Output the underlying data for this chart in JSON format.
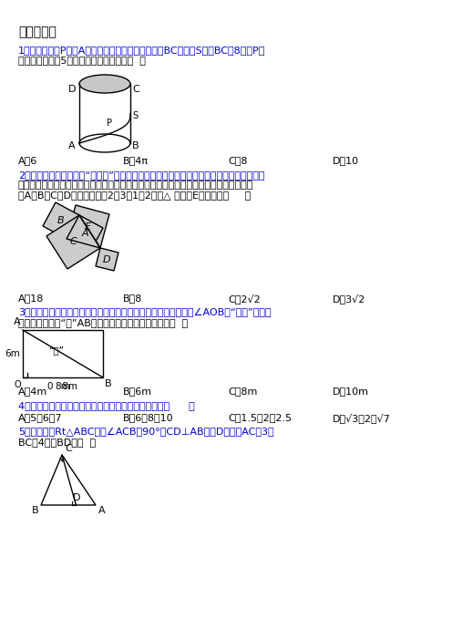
{
  "section1": "一、选择题",
  "q1_line1": "1．如图，动点P从点A出发，沿着圆柱的侧面移动到BC的中点S，若BC＝8，点P移",
  "q1_line2": "动的最短距离为5，则圆柱的底面周长为（  ）",
  "q1_opts": [
    "A．6",
    "B．4π",
    "C．8",
    "D．10"
  ],
  "q2_line1": "2．漕达哥拉斯树，也叫“勾股树”，是由漕达哥拉斯根据勾股定理所画出来的一个可以无限",
  "q2_line2": "重复的树形图形，其中所有的四边形都是正方形，所有的三角形都是直角三角形，若正方",
  "q2_line3": "形A、B、C、D的边长分别是2、3、1、2，则△ 正方形E的边长是（     ）",
  "q2_opts": [
    "A．18",
    "B．8",
    "C．2√2",
    "D．3√2"
  ],
  "q3_line1": "3．如图，某公园处有一块长方形草坪，有极少数人为了避开拐角∠AOB走“捷径”，在花",
  "q3_line2": "圈内走出了一条“路”AB，他们踩伤草坪，仅仅少走了（  ）",
  "q3_opts": [
    "A．4m",
    "B．6m",
    "C．8m",
    "D．10m"
  ],
  "q4_line1": "4．下列各组数据，不能作为直角三角形的三边长的是（      ）",
  "q4_opts": [
    "A．5、6、7",
    "B．6、8、10",
    "C．1.5、2、2.5",
    "D．√3、2、√7"
  ],
  "q5_line1": "5．如图，在Rt△ABC中，∠ACB＝90°，CD⊥AB于点D，已知AC＝3，",
  "q5_line2": "BC＝4，则BD＝（  ）",
  "bg_color": "#ffffff",
  "text_color": "#000000",
  "blue_color": "#0000cc"
}
